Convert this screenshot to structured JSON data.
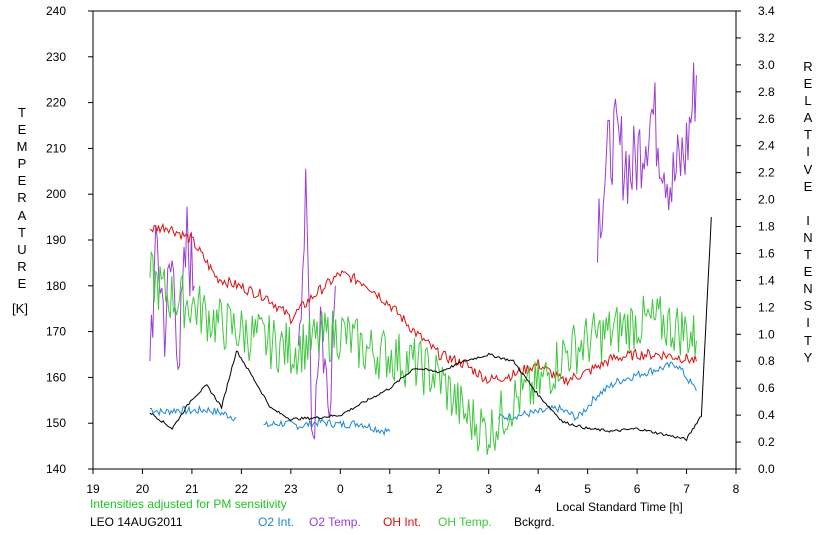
{
  "chart_data": {
    "type": "line",
    "left_axis_label": "TEMPERATURE",
    "left_axis_unit": "[K]",
    "right_axis_label": "RELATIVE INTENSITY",
    "x_axis_label": "Local Standard Time [h]",
    "note": "Intensities adjusted for PM sensitivity",
    "station_date": "LEO 14AUG2011",
    "x_ticks": [
      "19",
      "20",
      "21",
      "22",
      "23",
      "0",
      "1",
      "2",
      "3",
      "4",
      "5",
      "6",
      "7",
      "8"
    ],
    "y_left_ticks": [
      "140",
      "150",
      "160",
      "170",
      "180",
      "190",
      "200",
      "210",
      "220",
      "230",
      "240"
    ],
    "y_right_ticks": [
      "0.0",
      "0.2",
      "0.4",
      "0.6",
      "0.8",
      "1.0",
      "1.2",
      "1.4",
      "1.6",
      "1.8",
      "2.0",
      "2.2",
      "2.4",
      "2.6",
      "2.8",
      "3.0",
      "3.2",
      "3.4"
    ],
    "xlim": [
      19,
      32
    ],
    "ylim_left": [
      140,
      240
    ],
    "ylim_right": [
      0.0,
      3.4
    ],
    "grid": false,
    "series": [
      {
        "name": "O2 Int.",
        "color": "#1e88d8",
        "axis": "right",
        "segments": [
          {
            "x": [
              20.15,
              20.4,
              20.7,
              21.0,
              21.3,
              21.55,
              21.9
            ],
            "y": [
              0.45,
              0.42,
              0.44,
              0.43,
              0.44,
              0.42,
              0.38
            ]
          },
          {
            "x": [
              22.45,
              22.8,
              23.2,
              23.6,
              24.0,
              24.4,
              24.8,
              25.0
            ],
            "y": [
              0.32,
              0.34,
              0.32,
              0.35,
              0.33,
              0.34,
              0.29,
              0.28
            ]
          },
          {
            "x": [
              27.2,
              27.6,
              28.0,
              28.4,
              28.8,
              29.2,
              29.6,
              30.0,
              30.4,
              30.8,
              31.2
            ],
            "y": [
              0.38,
              0.4,
              0.42,
              0.45,
              0.38,
              0.55,
              0.65,
              0.7,
              0.74,
              0.78,
              0.58
            ]
          }
        ]
      },
      {
        "name": "O2 Temp.",
        "color": "#9b3ed6",
        "axis": "left",
        "segments": [
          {
            "x": [
              20.15,
              20.3,
              20.45,
              20.6,
              20.75,
              20.9,
              21.05
            ],
            "y": [
              168,
              188,
              172,
              185,
              165,
              190,
              180
            ]
          },
          {
            "x": [
              23.15,
              23.3,
              23.45,
              23.6,
              23.75,
              23.9
            ],
            "y": [
              172,
              196,
              148,
              175,
              154,
              180
            ]
          },
          {
            "x": [
              29.2,
              29.5,
              29.9,
              30.3,
              30.7,
              31.0,
              31.2
            ],
            "y": [
              195,
              212,
              205,
              218,
              202,
              210,
              226
            ]
          }
        ]
      },
      {
        "name": "OH Int.",
        "color": "#dd1010",
        "axis": "right",
        "segments": [
          {
            "x": [
              20.15,
              20.5,
              21.0,
              21.5,
              22.0,
              22.5,
              23.0,
              23.5,
              24.0,
              24.5,
              25.0,
              25.5,
              26.0,
              26.5,
              27.0,
              27.5,
              28.0,
              28.5,
              29.0,
              29.5,
              30.0,
              30.5,
              31.0,
              31.2
            ],
            "y": [
              1.78,
              1.8,
              1.7,
              1.42,
              1.35,
              1.28,
              1.12,
              1.3,
              1.45,
              1.38,
              1.22,
              1.02,
              0.85,
              0.78,
              0.66,
              0.7,
              0.78,
              0.65,
              0.72,
              0.82,
              0.85,
              0.85,
              0.82,
              0.8
            ]
          }
        ]
      },
      {
        "name": "OH Temp.",
        "color": "#3ec83e",
        "axis": "left",
        "segments": [
          {
            "x": [
              20.15,
              20.5,
              21.0,
              21.5,
              22.0,
              22.5,
              23.0,
              23.5,
              24.0,
              24.5,
              25.0,
              25.5,
              26.0,
              26.5,
              27.0,
              27.5,
              28.0,
              28.5,
              29.0,
              29.5,
              30.0,
              30.5,
              31.0,
              31.2
            ],
            "y": [
              182,
              178,
              176,
              172,
              170,
              168,
              166,
              168,
              170,
              166,
              165,
              163,
              160,
              152,
              148,
              155,
              158,
              165,
              168,
              170,
              172,
              172,
              170,
              168
            ]
          }
        ]
      },
      {
        "name": "Bckgrd.",
        "color": "#000000",
        "axis": "right",
        "segments": [
          {
            "x": [
              20.15,
              20.6,
              21.0,
              21.3,
              21.6,
              21.9,
              22.2,
              22.6,
              23.0,
              23.5,
              24.0,
              24.5,
              25.0,
              25.5,
              26.0,
              26.5,
              27.0,
              27.5,
              28.0,
              28.5,
              29.0,
              29.5,
              30.0,
              30.5,
              31.0,
              31.3,
              31.5
            ],
            "y": [
              0.42,
              0.3,
              0.52,
              0.62,
              0.46,
              0.88,
              0.7,
              0.45,
              0.37,
              0.38,
              0.4,
              0.5,
              0.6,
              0.75,
              0.72,
              0.8,
              0.85,
              0.8,
              0.55,
              0.35,
              0.3,
              0.28,
              0.3,
              0.26,
              0.22,
              0.4,
              1.87
            ]
          }
        ]
      }
    ]
  }
}
